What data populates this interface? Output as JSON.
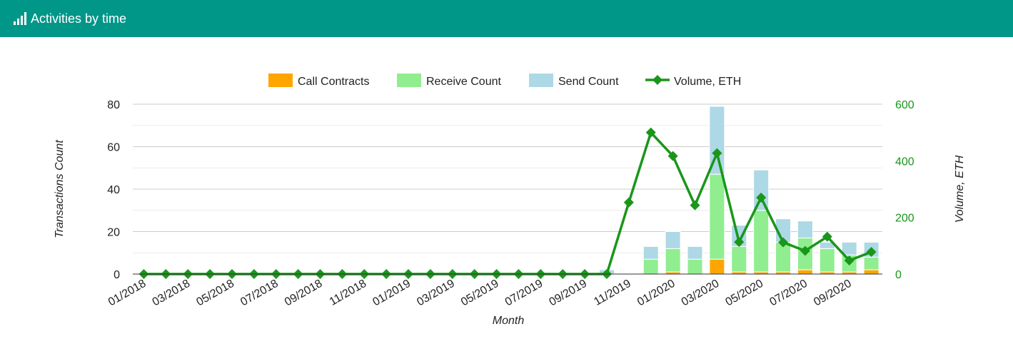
{
  "header": {
    "title": "Activities by time",
    "icon": "bar-chart-icon"
  },
  "colors": {
    "header_bg": "#009688",
    "call_contracts": "#FFA500",
    "receive_count": "#90EE90",
    "send_count": "#ADD8E6",
    "volume": "#1A961A"
  },
  "chart_data": {
    "type": "bar",
    "stacked": true,
    "categories": [
      "01/2018",
      "02/2018",
      "03/2018",
      "04/2018",
      "05/2018",
      "06/2018",
      "07/2018",
      "08/2018",
      "09/2018",
      "10/2018",
      "11/2018",
      "12/2018",
      "01/2019",
      "02/2019",
      "03/2019",
      "04/2019",
      "05/2019",
      "06/2019",
      "07/2019",
      "08/2019",
      "09/2019",
      "10/2019",
      "11/2019",
      "12/2019",
      "01/2020",
      "02/2020",
      "03/2020",
      "04/2020",
      "05/2020",
      "06/2020",
      "07/2020",
      "08/2020",
      "09/2020",
      "10/2020"
    ],
    "x_tick_labels": [
      "01/2018",
      "03/2018",
      "05/2018",
      "07/2018",
      "09/2018",
      "11/2018",
      "01/2019",
      "03/2019",
      "05/2019",
      "07/2019",
      "09/2019",
      "11/2019",
      "01/2020",
      "03/2020",
      "05/2020",
      "07/2020",
      "09/2020"
    ],
    "xlabel": "Month",
    "ylabel": "Transactions Count",
    "ylabel_right": "Volume, ETH",
    "ylim": [
      0,
      80
    ],
    "yticks": [
      0,
      20,
      40,
      60,
      80
    ],
    "ylim_right": [
      0,
      600
    ],
    "yticks_right": [
      0,
      200,
      400,
      600
    ],
    "legend_position": "top-center",
    "grid": true,
    "series": [
      {
        "name": "Call Contracts",
        "kind": "bar",
        "axis": "left",
        "values": [
          0,
          0,
          0,
          0,
          0,
          0,
          0,
          0,
          0,
          0,
          0,
          0,
          0,
          0,
          0,
          0,
          0,
          0,
          0,
          0,
          0,
          0,
          0,
          0,
          1,
          0,
          7,
          1,
          1,
          1,
          2,
          1,
          1,
          2
        ]
      },
      {
        "name": "Receive Count",
        "kind": "bar",
        "axis": "left",
        "values": [
          0,
          0,
          0,
          0,
          0,
          0,
          0,
          0,
          0,
          0,
          0,
          0,
          0,
          0,
          0,
          0,
          0,
          0,
          0,
          0,
          0,
          0,
          0,
          7,
          11,
          7,
          40,
          12,
          29,
          14,
          15,
          11,
          8,
          6
        ]
      },
      {
        "name": "Send Count",
        "kind": "bar",
        "axis": "left",
        "values": [
          0,
          0,
          0,
          0,
          0,
          0,
          0,
          0,
          0,
          0,
          0,
          0,
          0,
          0,
          0,
          0,
          0,
          0,
          0,
          0,
          0,
          2,
          0,
          6,
          8,
          6,
          32,
          10,
          19,
          11,
          8,
          3,
          6,
          7
        ]
      },
      {
        "name": "Volume, ETH",
        "kind": "line",
        "axis": "right",
        "values": [
          0,
          0,
          0,
          0,
          0,
          0,
          0,
          0,
          0,
          0,
          0,
          0,
          0,
          0,
          0,
          0,
          0,
          0,
          0,
          0,
          0,
          0,
          253,
          500,
          417,
          243,
          427,
          113,
          270,
          112,
          82,
          132,
          48,
          78
        ]
      }
    ]
  }
}
